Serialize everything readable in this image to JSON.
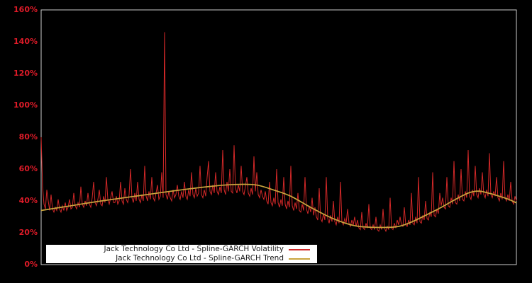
{
  "window": {
    "background": "#000000"
  },
  "axes": {
    "tick_label_color": "#de1b28",
    "y_tick_labels": [
      "0%",
      "20%",
      "40%",
      "60%",
      "80%",
      "100%",
      "120%",
      "140%",
      "160%"
    ],
    "y_tick_values": [
      0,
      20,
      40,
      60,
      80,
      100,
      120,
      140,
      160
    ]
  },
  "legend": {
    "background": "#ffffff",
    "text_color": "#1a1a1a"
  },
  "chart_data": {
    "type": "line",
    "title": "",
    "xlabel": "",
    "ylabel": "",
    "y_unit": "%",
    "ylim": [
      0,
      160
    ],
    "grid": false,
    "legend_position": "bottom-left",
    "plot_bg": "#000000",
    "border_color": "#cccccc",
    "series": [
      {
        "name": "Jack Technology Co Ltd - Spline-GARCH Volatility",
        "color": "#d22828",
        "style": "spiky-line",
        "x_range": [
          0,
          1
        ],
        "values": [
          80,
          49,
          38,
          35,
          47,
          40,
          34,
          44,
          35,
          33,
          36,
          34,
          41,
          35,
          33,
          37,
          34,
          39,
          34,
          36,
          41,
          35,
          36,
          45,
          37,
          35,
          39,
          36,
          49,
          38,
          36,
          40,
          37,
          45,
          38,
          36,
          42,
          52,
          39,
          37,
          41,
          47,
          38,
          37,
          43,
          39,
          55,
          41,
          38,
          42,
          46,
          39,
          39,
          43,
          38,
          40,
          52,
          40,
          38,
          48,
          41,
          39,
          44,
          60,
          42,
          39,
          45,
          40,
          52,
          41,
          39,
          44,
          40,
          62,
          43,
          40,
          46,
          41,
          55,
          42,
          40,
          45,
          50,
          41,
          43,
          58,
          42,
          146,
          44,
          41,
          46,
          42,
          40,
          47,
          42,
          44,
          50,
          43,
          41,
          46,
          42,
          52,
          43,
          41,
          47,
          43,
          58,
          44,
          42,
          48,
          43,
          45,
          62,
          44,
          42,
          47,
          43,
          55,
          65,
          46,
          44,
          50,
          45,
          58,
          46,
          44,
          49,
          45,
          72,
          47,
          44,
          52,
          46,
          60,
          46,
          45,
          75,
          48,
          45,
          50,
          46,
          62,
          46,
          44,
          49,
          55,
          45,
          43,
          48,
          44,
          68,
          46,
          58,
          44,
          42,
          47,
          43,
          41,
          46,
          40,
          38,
          52,
          39,
          37,
          42,
          38,
          60,
          39,
          36,
          41,
          37,
          55,
          38,
          35,
          40,
          36,
          62,
          37,
          34,
          39,
          35,
          45,
          34,
          33,
          38,
          34,
          55,
          35,
          32,
          37,
          33,
          42,
          31,
          36,
          30,
          28,
          48,
          29,
          27,
          32,
          28,
          55,
          29,
          26,
          31,
          27,
          40,
          27,
          25,
          30,
          26,
          52,
          27,
          25,
          29,
          26,
          35,
          26,
          24,
          28,
          25,
          30,
          24,
          28,
          23,
          22,
          33,
          23,
          22,
          26,
          23,
          38,
          23,
          22,
          25,
          22,
          30,
          22,
          21,
          25,
          22,
          35,
          23,
          21,
          24,
          22,
          42,
          23,
          22,
          26,
          23,
          28,
          25,
          30,
          25,
          24,
          36,
          25,
          24,
          28,
          25,
          45,
          26,
          25,
          30,
          26,
          55,
          27,
          26,
          31,
          28,
          40,
          29,
          28,
          33,
          30,
          58,
          31,
          30,
          35,
          32,
          45,
          37,
          42,
          36,
          35,
          55,
          37,
          36,
          42,
          38,
          65,
          39,
          38,
          44,
          40,
          60,
          41,
          40,
          46,
          42,
          72,
          43,
          41,
          47,
          43,
          62,
          44,
          42,
          48,
          44,
          58,
          44,
          42,
          47,
          43,
          70,
          44,
          42,
          46,
          43,
          55,
          42,
          40,
          45,
          41,
          65,
          42,
          40,
          44,
          40,
          52,
          40,
          38,
          43,
          40
        ]
      },
      {
        "name": "Jack Technology Co Ltd - Spline-GARCH Trend",
        "color": "#c9a43d",
        "style": "smooth-line",
        "points": [
          [
            0,
            34
          ],
          [
            0.063,
            37
          ],
          [
            0.122,
            39.8
          ],
          [
            0.182,
            42.3
          ],
          [
            0.242,
            44.8
          ],
          [
            0.301,
            47.2
          ],
          [
            0.361,
            49.3
          ],
          [
            0.406,
            50.3
          ],
          [
            0.451,
            50.1
          ],
          [
            0.488,
            47
          ],
          [
            0.525,
            43
          ],
          [
            0.57,
            35.5
          ],
          [
            0.615,
            28.8
          ],
          [
            0.66,
            24.4
          ],
          [
            0.704,
            23.4
          ],
          [
            0.749,
            23.8
          ],
          [
            0.779,
            26.7
          ],
          [
            0.809,
            31
          ],
          [
            0.839,
            35.5
          ],
          [
            0.869,
            40.5
          ],
          [
            0.899,
            45
          ],
          [
            0.921,
            46.2
          ],
          [
            0.943,
            44.8
          ],
          [
            0.958,
            43.5
          ],
          [
            0.981,
            41.3
          ],
          [
            1,
            38.8
          ]
        ]
      }
    ]
  }
}
